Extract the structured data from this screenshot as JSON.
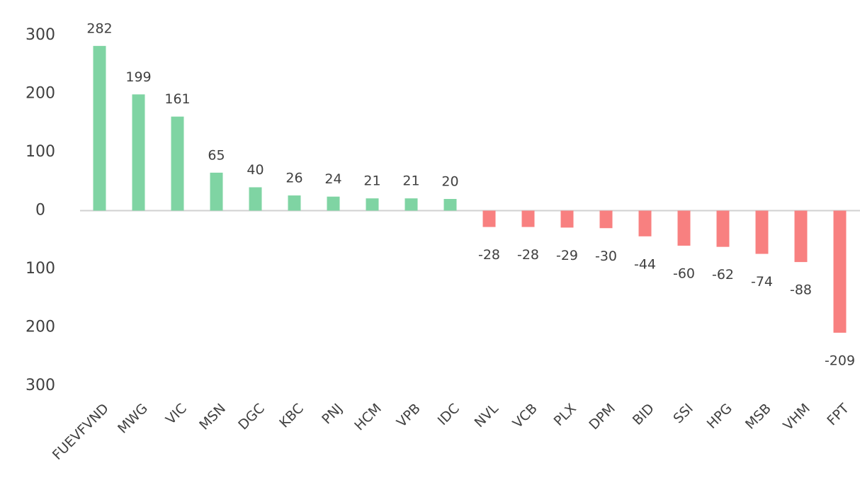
{
  "chart_data": {
    "type": "bar",
    "categories": [
      "FUEVFVND",
      "MWG",
      "VIC",
      "MSN",
      "DGC",
      "KBC",
      "PNJ",
      "HCM",
      "VPB",
      "IDC",
      "NVL",
      "VCB",
      "PLX",
      "DPM",
      "BID",
      "SSI",
      "HPG",
      "MSB",
      "VHM",
      "FPT"
    ],
    "values": [
      282,
      199,
      161,
      65,
      40,
      26,
      24,
      21,
      21,
      20,
      -28,
      -28,
      -29,
      -30,
      -44,
      -60,
      -62,
      -74,
      -88,
      -209
    ],
    "color_positive": "#7fd4a3",
    "color_negative": "#f88080",
    "ylim": [
      -300,
      300
    ],
    "yticks": [
      300,
      200,
      100,
      0,
      {
        "value": -100,
        "label": "100"
      },
      {
        "value": -200,
        "label": "200"
      },
      {
        "value": -300,
        "label": "300"
      }
    ],
    "grid": false
  }
}
